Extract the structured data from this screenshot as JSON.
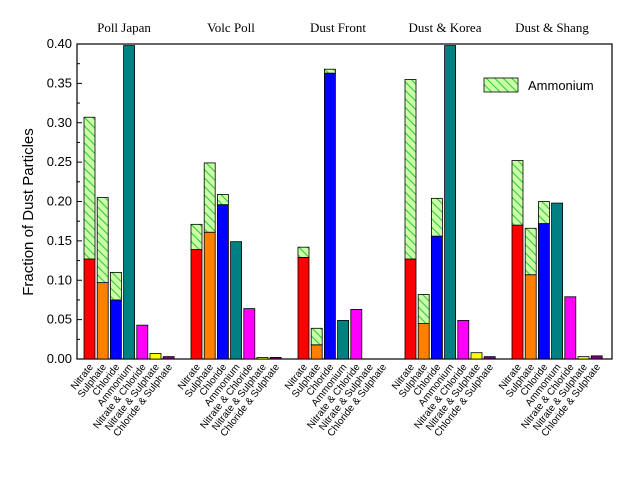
{
  "chart_data": {
    "type": "bar",
    "ylabel": "Fraction of Dust Particles",
    "xlabel": "",
    "ylim": [
      0,
      0.4
    ],
    "yticks": [
      "0.00",
      "0.05",
      "0.10",
      "0.15",
      "0.20",
      "0.25",
      "0.30",
      "0.35",
      "0.40"
    ],
    "categories": [
      "Nitrate",
      "Sulphate",
      "Chloride",
      "Ammonium",
      "Nitrate & Chloride",
      "Nitrate & Sulphate",
      "Chloride & Sulphate"
    ],
    "category_colors": [
      "#ff0000",
      "#ff8000",
      "#0000ff",
      "#008080",
      "#ff00ff",
      "#ffff00",
      "#7f007f"
    ],
    "hatch_color": "#33cc33",
    "hatch_fill": "#ccffaa",
    "legend": {
      "label": "Ammonium",
      "position": "top-right"
    },
    "groups": [
      {
        "name": "Poll Japan",
        "values": [
          0.127,
          0.097,
          0.075,
          0.398,
          0.043,
          0.007,
          0.003
        ],
        "ammonium": [
          0.18,
          0.108,
          0.035,
          0,
          0,
          0,
          0
        ]
      },
      {
        "name": "Volc Poll",
        "values": [
          0.139,
          0.161,
          0.196,
          0.149,
          0.064,
          0.002,
          0.002
        ],
        "ammonium": [
          0.032,
          0.088,
          0.013,
          0,
          0,
          0,
          0
        ]
      },
      {
        "name": "Dust Front",
        "values": [
          0.129,
          0.018,
          0.363,
          0.049,
          0.063,
          0,
          0
        ],
        "ammonium": [
          0.013,
          0.021,
          0.005,
          0,
          0,
          0,
          0
        ]
      },
      {
        "name": "Dust & Korea",
        "values": [
          0.127,
          0.045,
          0.156,
          0.398,
          0.049,
          0.008,
          0.003
        ],
        "ammonium": [
          0.228,
          0.037,
          0.048,
          0,
          0,
          0,
          0
        ]
      },
      {
        "name": "Dust & Shang",
        "values": [
          0.17,
          0.107,
          0.172,
          0.198,
          0.079,
          0.003,
          0.004
        ],
        "ammonium": [
          0.082,
          0.059,
          0.028,
          0,
          0,
          0,
          0
        ]
      }
    ]
  }
}
